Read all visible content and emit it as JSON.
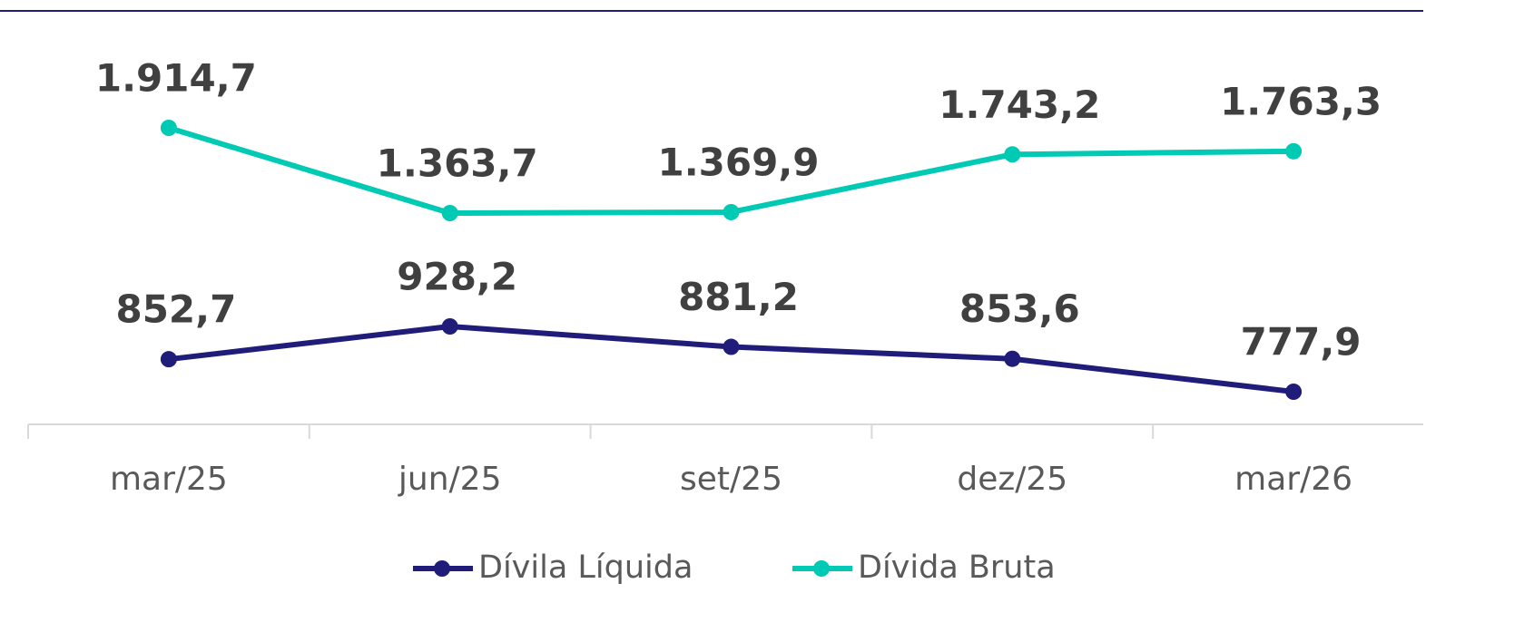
{
  "chart_data": {
    "type": "line",
    "categories": [
      "mar/25",
      "jun/25",
      "set/25",
      "dez/25",
      "mar/26"
    ],
    "series": [
      {
        "name": "Dívila Líquida",
        "color": "#1f1c7a",
        "values": [
          852.7,
          928.2,
          881.2,
          853.6,
          777.9
        ],
        "value_labels": [
          "852,7",
          "928,2",
          "881,2",
          "853,6",
          "777,9"
        ]
      },
      {
        "name": "Dívida Bruta",
        "color": "#00c9b4",
        "axis": "y2",
        "values": [
          1914.7,
          1363.7,
          1369.9,
          1743.2,
          1763.3
        ],
        "value_labels": [
          "1.914,7",
          "1.363,7",
          "1.369,9",
          "1.743,2",
          "1.763,3"
        ]
      }
    ]
  }
}
